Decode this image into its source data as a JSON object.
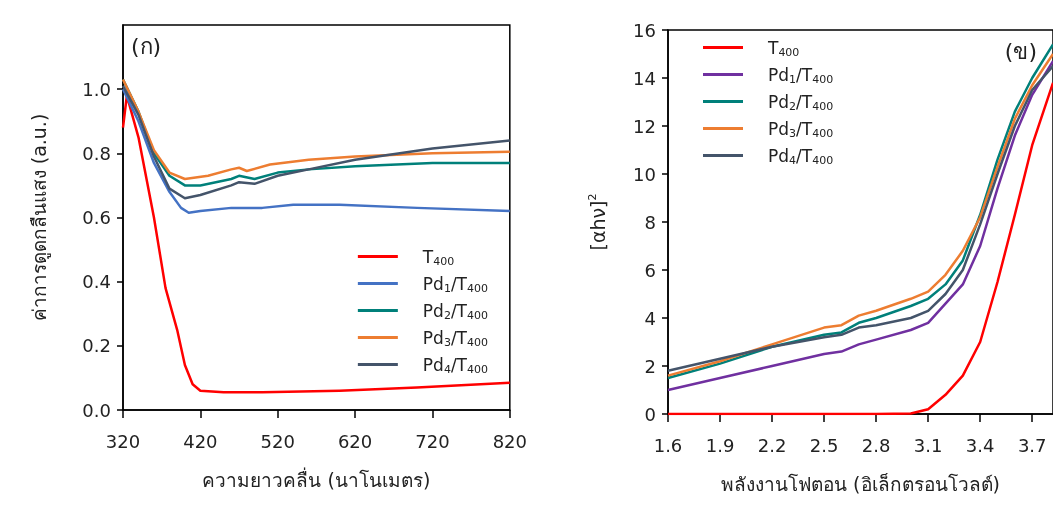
{
  "chart_data": [
    {
      "type": "line",
      "xlabel": "ความยาวคลื่น (นาโนเมตร)",
      "ylabel": "ค่าการดูดกลืนแสง (a.u.)",
      "annotations": [
        "(ก)"
      ],
      "legend": "bottom right",
      "xlim": [
        320,
        820
      ],
      "xticks": [
        320,
        420,
        520,
        620,
        720,
        820
      ],
      "ylim": [
        0,
        1.2
      ],
      "yticks": [
        {
          "value": 0,
          "label": "0.0"
        },
        0.2,
        0.4,
        0.6,
        0.8,
        {
          "value": 1,
          "label": "1.0"
        }
      ],
      "series": [
        {
          "name": "T$_{400}$",
          "color": "#ff0000",
          "x": [
            320,
            325,
            340,
            360,
            375,
            390,
            400,
            410,
            420,
            450,
            500,
            600,
            700,
            820
          ],
          "values": [
            0.88,
            0.98,
            0.85,
            0.6,
            0.38,
            0.25,
            0.14,
            0.08,
            0.06,
            0.055,
            0.055,
            0.06,
            0.07,
            0.085
          ]
        },
        {
          "name": "Pd$_{1}$/T$_{400}$",
          "color": "#4472c4",
          "x": [
            320,
            340,
            360,
            380,
            395,
            405,
            420,
            460,
            500,
            540,
            600,
            700,
            820
          ],
          "values": [
            1.0,
            0.9,
            0.77,
            0.68,
            0.63,
            0.615,
            0.62,
            0.63,
            0.63,
            0.64,
            0.64,
            0.63,
            0.62
          ]
        },
        {
          "name": "Pd$_{2}$/T$_{400}$",
          "color": "#00807a",
          "x": [
            320,
            340,
            360,
            380,
            400,
            420,
            460,
            470,
            490,
            520,
            560,
            620,
            720,
            820
          ],
          "values": [
            1.03,
            0.93,
            0.8,
            0.73,
            0.7,
            0.7,
            0.72,
            0.73,
            0.72,
            0.74,
            0.75,
            0.76,
            0.77,
            0.77
          ]
        },
        {
          "name": "Pd$_{3}$/T$_{400}$",
          "color": "#ed7d31",
          "x": [
            320,
            340,
            360,
            380,
            400,
            430,
            460,
            470,
            480,
            510,
            560,
            620,
            720,
            820
          ],
          "values": [
            1.03,
            0.93,
            0.81,
            0.74,
            0.72,
            0.73,
            0.75,
            0.755,
            0.745,
            0.765,
            0.78,
            0.79,
            0.8,
            0.805
          ]
        },
        {
          "name": "Pd$_{4}$/T$_{400}$",
          "color": "#44546a",
          "x": [
            320,
            340,
            360,
            380,
            400,
            420,
            460,
            470,
            490,
            520,
            560,
            620,
            720,
            820
          ],
          "values": [
            1.01,
            0.92,
            0.79,
            0.69,
            0.66,
            0.67,
            0.7,
            0.71,
            0.705,
            0.73,
            0.75,
            0.78,
            0.815,
            0.84
          ]
        }
      ]
    },
    {
      "type": "line",
      "xlabel": "พลังงานโฟตอน (อิเล็กตรอนโวลต์)",
      "ylabel": "[αhν]$^{2}$",
      "annotations": [
        "(ข)"
      ],
      "legend": "top left",
      "xlim": [
        1.6,
        3.82
      ],
      "xticks": [
        1.6,
        1.9,
        2.2,
        2.5,
        2.8,
        3.1,
        3.4,
        3.7
      ],
      "ylim": [
        0,
        16
      ],
      "yticks": [
        0,
        2,
        4,
        6,
        8,
        10,
        12,
        14,
        16
      ],
      "series": [
        {
          "name": "T$_{400}$",
          "color": "#ff0000",
          "x": [
            1.6,
            2.8,
            3.0,
            3.1,
            3.2,
            3.3,
            3.4,
            3.5,
            3.6,
            3.7,
            3.82
          ],
          "values": [
            0,
            0,
            0.02,
            0.2,
            0.8,
            1.6,
            3.0,
            5.5,
            8.3,
            11.2,
            13.8
          ]
        },
        {
          "name": "Pd$_{1}$/T$_{400}$",
          "color": "#7030a0",
          "x": [
            1.6,
            1.9,
            2.2,
            2.5,
            2.6,
            2.7,
            2.8,
            3.0,
            3.1,
            3.2,
            3.3,
            3.4,
            3.5,
            3.6,
            3.7,
            3.82
          ],
          "values": [
            1.0,
            1.5,
            2.0,
            2.5,
            2.6,
            2.9,
            3.1,
            3.5,
            3.8,
            4.6,
            5.4,
            7.0,
            9.4,
            11.6,
            13.3,
            14.7
          ]
        },
        {
          "name": "Pd$_{2}$/T$_{400}$",
          "color": "#00807a",
          "x": [
            1.6,
            1.9,
            2.2,
            2.5,
            2.6,
            2.7,
            2.8,
            3.0,
            3.1,
            3.2,
            3.3,
            3.4,
            3.5,
            3.6,
            3.7,
            3.82
          ],
          "values": [
            1.5,
            2.1,
            2.8,
            3.3,
            3.4,
            3.8,
            4.0,
            4.5,
            4.8,
            5.4,
            6.4,
            8.3,
            10.6,
            12.6,
            14.0,
            15.4
          ]
        },
        {
          "name": "Pd$_{3}$/T$_{400}$",
          "color": "#ed7d31",
          "x": [
            1.6,
            1.9,
            2.2,
            2.5,
            2.6,
            2.7,
            2.8,
            3.0,
            3.1,
            3.2,
            3.3,
            3.4,
            3.5,
            3.6,
            3.7,
            3.82
          ],
          "values": [
            1.6,
            2.2,
            2.9,
            3.6,
            3.7,
            4.1,
            4.3,
            4.8,
            5.1,
            5.8,
            6.8,
            8.2,
            10.3,
            12.3,
            13.7,
            15.0
          ]
        },
        {
          "name": "Pd$_{4}$/T$_{400}$",
          "color": "#44546a",
          "x": [
            1.6,
            1.9,
            2.2,
            2.5,
            2.6,
            2.7,
            2.8,
            3.0,
            3.1,
            3.2,
            3.3,
            3.4,
            3.5,
            3.6,
            3.7,
            3.82
          ],
          "values": [
            1.8,
            2.3,
            2.8,
            3.2,
            3.3,
            3.6,
            3.7,
            4.0,
            4.3,
            5.0,
            6.0,
            7.9,
            10.0,
            12.0,
            13.5,
            14.5
          ]
        }
      ]
    }
  ]
}
